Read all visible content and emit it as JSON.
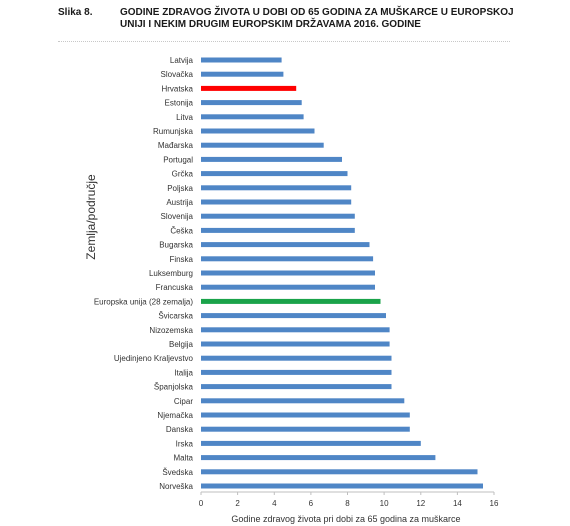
{
  "figure": {
    "label": "Slika 8.",
    "title": "GODINE ZDRAVOG ŽIVOTA U DOBI OD 65 GODINA ZA MUŠKARCE U EUROPSKOJ UNIJI I NEKIM DRUGIM EUROPSKIM DRŽAVAMA 2016. GODINE"
  },
  "colors": {
    "bar_default": "#4f86c6",
    "bar_highlight_croatia": "#ff0000",
    "bar_highlight_eu": "#1aa34a",
    "axis": "#bfbfbf"
  },
  "chart_data": {
    "type": "bar",
    "orientation": "horizontal",
    "xlabel": "Godine zdravog života pri dobi za 65 godina za muškarce",
    "ylabel": "Zemlja/područje",
    "xlim": [
      0,
      16
    ],
    "xticks": [
      0,
      2,
      4,
      6,
      8,
      10,
      12,
      14,
      16
    ],
    "grid": false,
    "legend": "none",
    "categories": [
      "Latvija",
      "Slovačka",
      "Hrvatska",
      "Estonija",
      "Litva",
      "Rumunjska",
      "Mađarska",
      "Portugal",
      "Grčka",
      "Poljska",
      "Austrija",
      "Slovenija",
      "Češka",
      "Bugarska",
      "Finska",
      "Luksemburg",
      "Francuska",
      "Europska unija (28 zemalja)",
      "Švicarska",
      "Nizozemska",
      "Belgija",
      "Ujedinjeno Kraljevstvo",
      "Italija",
      "Španjolska",
      "Cipar",
      "Njemačka",
      "Danska",
      "Irska",
      "Malta",
      "Švedska",
      "Norveška"
    ],
    "values": [
      4.4,
      4.5,
      5.2,
      5.5,
      5.6,
      6.2,
      6.7,
      7.7,
      8.0,
      8.2,
      8.2,
      8.4,
      8.4,
      9.2,
      9.4,
      9.5,
      9.5,
      9.8,
      10.1,
      10.3,
      10.3,
      10.4,
      10.4,
      10.4,
      11.1,
      11.4,
      11.4,
      12.0,
      12.8,
      15.1,
      15.4
    ],
    "highlight": {
      "Hrvatska": "bar_highlight_croatia",
      "Europska unija (28 zemalja)": "bar_highlight_eu"
    }
  }
}
